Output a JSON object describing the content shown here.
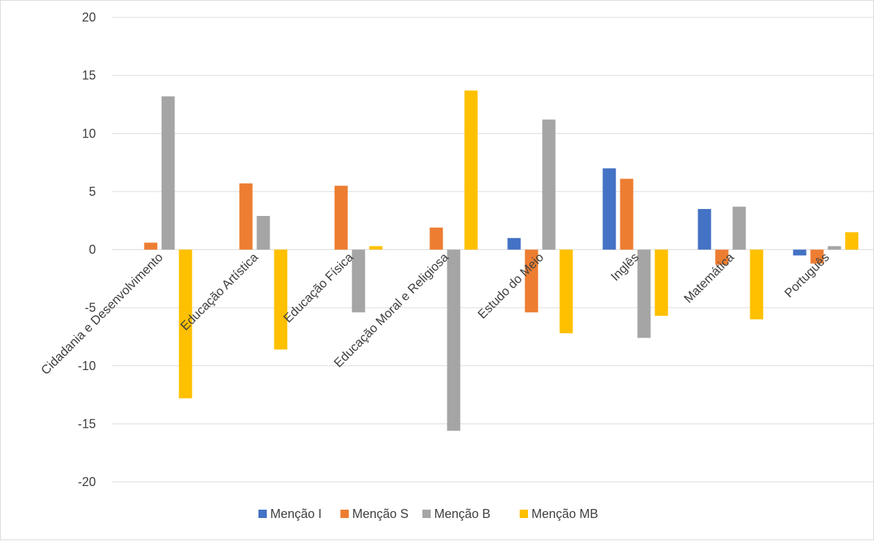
{
  "chart_data": {
    "type": "bar",
    "title": "",
    "xlabel": "",
    "ylabel": "",
    "ylim": [
      -20,
      20
    ],
    "ytick_step": 5,
    "grid": true,
    "legend_position": "bottom",
    "categories": [
      "Cidadania e Desenvolvimento",
      "Educação Artística",
      "Educação Física",
      "Educação Moral e Religiosa",
      "Estudo do Meio",
      "Inglês",
      "Matemática",
      "Português"
    ],
    "series": [
      {
        "name": "Menção I",
        "color": "#4472C4",
        "values": [
          0,
          0,
          0,
          0,
          1.0,
          7.0,
          3.5,
          -0.5
        ]
      },
      {
        "name": "Menção S",
        "color": "#ED7D31",
        "values": [
          0.6,
          5.7,
          5.5,
          1.9,
          -5.4,
          6.1,
          -1.3,
          -1.2
        ]
      },
      {
        "name": "Menção B",
        "color": "#A5A5A5",
        "values": [
          13.2,
          2.9,
          -5.4,
          -15.6,
          11.2,
          -7.6,
          3.7,
          0.3
        ]
      },
      {
        "name": "Menção MB",
        "color": "#FFC000",
        "values": [
          -12.8,
          -8.6,
          0.3,
          13.7,
          -7.2,
          -5.7,
          -6.0,
          1.5
        ]
      }
    ]
  }
}
